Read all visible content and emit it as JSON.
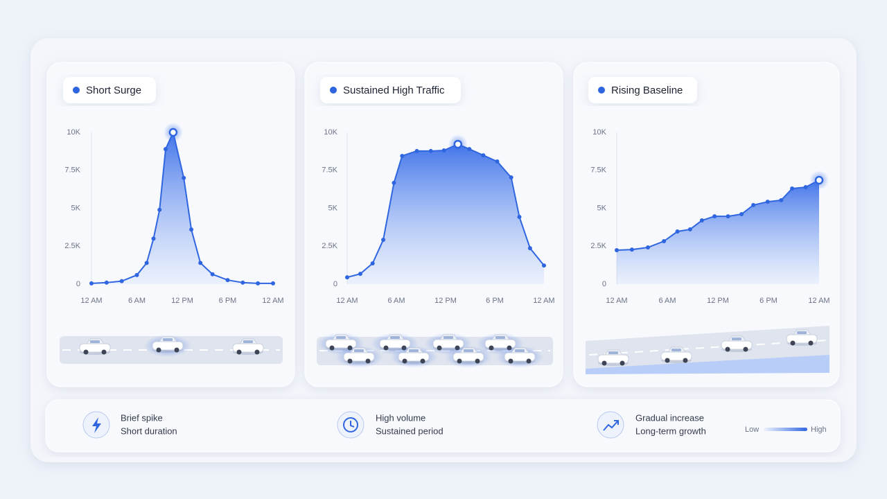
{
  "chart_data": [
    {
      "type": "area",
      "title": "Short Surge",
      "color": "#2f66e0",
      "x": [
        0,
        2,
        4,
        6,
        7.3,
        8.2,
        9,
        9.8,
        10.8,
        12.2,
        13.2,
        14.4,
        16,
        18,
        20,
        22,
        24
      ],
      "values": [
        50,
        100,
        200,
        600,
        1400,
        3000,
        4900,
        8900,
        10000,
        7000,
        3600,
        1400,
        650,
        270,
        100,
        50,
        50
      ],
      "xlim": [
        0,
        24
      ],
      "xticks": [
        {
          "value": 0,
          "label": "12 AM"
        },
        {
          "value": 6,
          "label": "6 AM"
        },
        {
          "value": 12,
          "label": "12 PM"
        },
        {
          "value": 18,
          "label": "6 PM"
        },
        {
          "value": 24,
          "label": "12 AM"
        }
      ],
      "ylim": [
        0,
        10000
      ],
      "yticks": [
        0,
        {
          "value": 2500,
          "label": "2.5K"
        },
        {
          "value": 5000,
          "label": "5K"
        },
        {
          "value": 7500,
          "label": "7.5K"
        },
        {
          "value": 10000,
          "label": "10K"
        }
      ]
    },
    {
      "type": "area",
      "title": "Sustained High Traffic",
      "color": "#2f66e0",
      "x": [
        0,
        1.6,
        3.1,
        4.4,
        5.7,
        6.7,
        8.5,
        10.2,
        11.8,
        13.5,
        14.9,
        16.6,
        18.3,
        20,
        21,
        22.3,
        24
      ],
      "values": [
        450,
        680,
        1370,
        2920,
        6670,
        8450,
        8770,
        8770,
        8810,
        9220,
        8900,
        8490,
        8080,
        7030,
        4430,
        2370,
        1230
      ],
      "xlim": [
        0,
        24
      ],
      "xticks": [
        {
          "value": 0,
          "label": "12 AM"
        },
        {
          "value": 6,
          "label": "6 AM"
        },
        {
          "value": 12,
          "label": "12 PM"
        },
        {
          "value": 18,
          "label": "6 PM"
        },
        {
          "value": 24,
          "label": "12 AM"
        }
      ],
      "ylim": [
        0,
        10000
      ],
      "yticks": [
        0,
        {
          "value": 2500,
          "label": "2.5K"
        },
        {
          "value": 5000,
          "label": "5K"
        },
        {
          "value": 7500,
          "label": "7.5K"
        },
        {
          "value": 10000,
          "label": "10K"
        }
      ]
    },
    {
      "type": "area",
      "title": "Rising Baseline",
      "color": "#2f66e0",
      "x": [
        0,
        1.8,
        3.7,
        5.6,
        7.2,
        8.7,
        10.1,
        11.6,
        13.2,
        14.8,
        16.2,
        17.9,
        19.5,
        20.8,
        22.4,
        24
      ],
      "values": [
        2240,
        2280,
        2420,
        2830,
        3470,
        3610,
        4200,
        4470,
        4470,
        4610,
        5210,
        5430,
        5530,
        6300,
        6390,
        6850
      ],
      "xlim": [
        0,
        24
      ],
      "xticks": [
        {
          "value": 0,
          "label": "12 AM"
        },
        {
          "value": 6,
          "label": "6 AM"
        },
        {
          "value": 12,
          "label": "12 PM"
        },
        {
          "value": 18,
          "label": "6 PM"
        },
        {
          "value": 24,
          "label": "12 AM"
        }
      ],
      "ylim": [
        0,
        10000
      ],
      "yticks": [
        0,
        {
          "value": 2500,
          "label": "2.5K"
        },
        {
          "value": 5000,
          "label": "5K"
        },
        {
          "value": 7500,
          "label": "7.5K"
        },
        {
          "value": 10000,
          "label": "10K"
        }
      ]
    }
  ],
  "footer": {
    "items": [
      {
        "line1": "Brief spike",
        "line2": "Short duration"
      },
      {
        "line1": "High volume",
        "line2": "Sustained period"
      },
      {
        "line1": "Gradual increase",
        "line2": "Long-term growth"
      }
    ],
    "legend": {
      "low": "Low",
      "high": "High"
    }
  }
}
